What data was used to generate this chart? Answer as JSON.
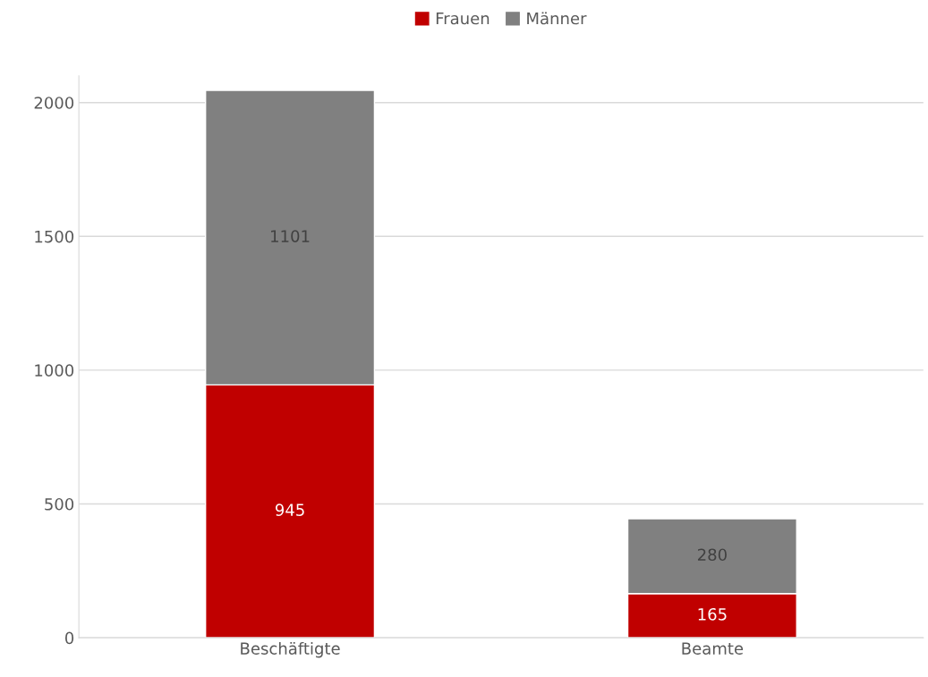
{
  "chart_data": {
    "type": "bar",
    "stacked": true,
    "categories": [
      "Beschäftigte",
      "Beamte"
    ],
    "series": [
      {
        "name": "Frauen",
        "color": "#c00000",
        "values": [
          945,
          165
        ]
      },
      {
        "name": "Männer",
        "color": "#808080",
        "values": [
          1101,
          280
        ]
      }
    ],
    "ylim": [
      0,
      2100
    ],
    "yticks": [
      0,
      500,
      1000,
      1500,
      2000
    ],
    "grid": "y",
    "legend": "top",
    "data_labels": true
  }
}
